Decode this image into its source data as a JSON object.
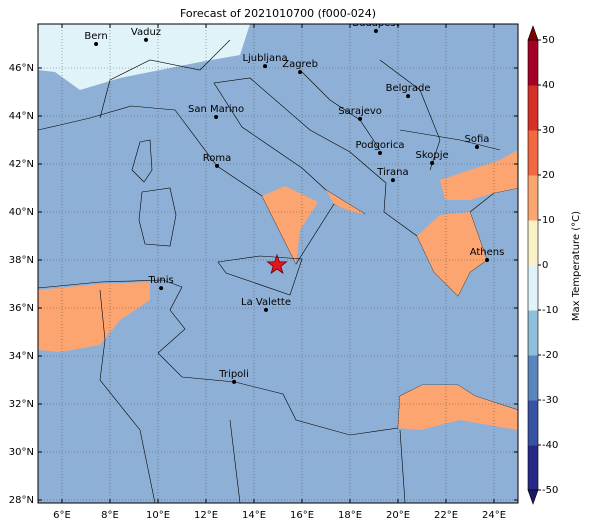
{
  "title": "Forecast of 2021010700 (f000-024)",
  "map": {
    "xlim": [
      5,
      25
    ],
    "ylim": [
      27.875,
      47.833
    ],
    "xticks": [
      {
        "value": 6,
        "label": "6°E"
      },
      {
        "value": 8,
        "label": "8°E"
      },
      {
        "value": 10,
        "label": "10°E"
      },
      {
        "value": 12,
        "label": "12°E"
      },
      {
        "value": 14,
        "label": "14°E"
      },
      {
        "value": 16,
        "label": "16°E"
      },
      {
        "value": 18,
        "label": "18°E"
      },
      {
        "value": 20,
        "label": "20°E"
      },
      {
        "value": 22,
        "label": "22°E"
      },
      {
        "value": 24,
        "label": "24°E"
      }
    ],
    "yticks": [
      {
        "value": 28,
        "label": "28°N"
      },
      {
        "value": 30,
        "label": "30°N"
      },
      {
        "value": 32,
        "label": "32°N"
      },
      {
        "value": 34,
        "label": "34°N"
      },
      {
        "value": 36,
        "label": "36°N"
      },
      {
        "value": 38,
        "label": "38°N"
      },
      {
        "value": 40,
        "label": "40°N"
      },
      {
        "value": 42,
        "label": "42°N"
      },
      {
        "value": 44,
        "label": "44°N"
      },
      {
        "value": 46,
        "label": "46°N"
      }
    ],
    "cities": [
      {
        "name": "Bern",
        "lon": 7.42,
        "lat": 47.0
      },
      {
        "name": "Vaduz",
        "lon": 9.5,
        "lat": 47.17
      },
      {
        "name": "Budapest",
        "lon": 19.08,
        "lat": 47.54
      },
      {
        "name": "Ljubljana",
        "lon": 14.46,
        "lat": 46.08
      },
      {
        "name": "Zagreb",
        "lon": 15.92,
        "lat": 45.83
      },
      {
        "name": "Belgrade",
        "lon": 20.42,
        "lat": 44.83
      },
      {
        "name": "San Marino",
        "lon": 12.42,
        "lat": 43.96
      },
      {
        "name": "Sarajevo",
        "lon": 18.42,
        "lat": 43.88
      },
      {
        "name": "Sofia",
        "lon": 23.29,
        "lat": 42.71
      },
      {
        "name": "Podgorica",
        "lon": 19.25,
        "lat": 42.46
      },
      {
        "name": "Skopje",
        "lon": 21.42,
        "lat": 42.04
      },
      {
        "name": "Roma",
        "lon": 12.46,
        "lat": 41.92
      },
      {
        "name": "Tirana",
        "lon": 19.79,
        "lat": 41.33
      },
      {
        "name": "Athens",
        "lon": 23.71,
        "lat": 38.0
      },
      {
        "name": "Tunis",
        "lon": 10.13,
        "lat": 36.83
      },
      {
        "name": "La Valette",
        "lon": 14.5,
        "lat": 35.92
      },
      {
        "name": "Tripoli",
        "lon": 13.17,
        "lat": 32.92
      }
    ],
    "star": {
      "lon": 14.96,
      "lat": 37.79
    }
  },
  "colorbar": {
    "label": "Max Temperature (°C)",
    "lim": [
      -50,
      50
    ],
    "ticks": [
      50,
      40,
      30,
      20,
      10,
      0,
      -10,
      -20,
      -30,
      -40,
      -50
    ],
    "colors": [
      "#262a86",
      "#3953a4",
      "#5a86bd",
      "#91bfdb",
      "#e0f3f8",
      "#fbf3c7",
      "#fca571",
      "#f26841",
      "#d73027",
      "#a50026"
    ],
    "under": "#1a1a6a",
    "over": "#7f0000"
  }
}
